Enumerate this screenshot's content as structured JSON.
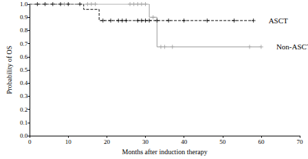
{
  "chart_data": {
    "type": "line",
    "x_label": "Months after induction therapy",
    "y_label": "Probability of OS",
    "xlim": [
      0,
      70
    ],
    "xticks": [
      0,
      10,
      20,
      30,
      40,
      50,
      60,
      70
    ],
    "ylim": [
      0,
      1
    ],
    "yticks": [
      {
        "value": 0,
        "label": "0.0"
      },
      0.1,
      0.2,
      0.3,
      0.4,
      0.5,
      0.6,
      0.7,
      0.8,
      0.9,
      {
        "value": 1,
        "label": "1.0"
      }
    ],
    "grid": false,
    "series": [
      {
        "name": "ASCT",
        "color": "#000000",
        "line_style": "dashed",
        "marker": "plus",
        "x": [
          0,
          14,
          18,
          58
        ],
        "values": [
          1.0,
          0.96,
          0.875,
          0.875
        ],
        "censored": [
          [
            2,
            1.0
          ],
          [
            4,
            1.0
          ],
          [
            6,
            1.0
          ],
          [
            8,
            1.0
          ],
          [
            10,
            1.0
          ],
          [
            13,
            1.0
          ],
          [
            19,
            0.875
          ],
          [
            21,
            0.875
          ],
          [
            23,
            0.875
          ],
          [
            24,
            0.875
          ],
          [
            25,
            0.875
          ],
          [
            28,
            0.875
          ],
          [
            29,
            0.875
          ],
          [
            30,
            0.875
          ],
          [
            31,
            0.875
          ],
          [
            33,
            0.875
          ],
          [
            36,
            0.875
          ],
          [
            40,
            0.875
          ],
          [
            46,
            0.875
          ],
          [
            53,
            0.875
          ],
          [
            58,
            0.875
          ]
        ]
      },
      {
        "name": "Non-ASCT",
        "color": "#999999",
        "line_style": "solid",
        "marker": "plus",
        "x": [
          0,
          31,
          33,
          60
        ],
        "values": [
          1.0,
          0.9,
          0.675,
          0.675
        ],
        "censored": [
          [
            9,
            1.0
          ],
          [
            15,
            1.0
          ],
          [
            16,
            1.0
          ],
          [
            17,
            1.0
          ],
          [
            26,
            1.0
          ],
          [
            27,
            1.0
          ],
          [
            28,
            1.0
          ],
          [
            29,
            1.0
          ],
          [
            30,
            1.0
          ],
          [
            32,
            0.9
          ],
          [
            34,
            0.675
          ],
          [
            35,
            0.675
          ],
          [
            37,
            0.675
          ],
          [
            57,
            0.675
          ],
          [
            60,
            0.675
          ]
        ]
      }
    ]
  }
}
